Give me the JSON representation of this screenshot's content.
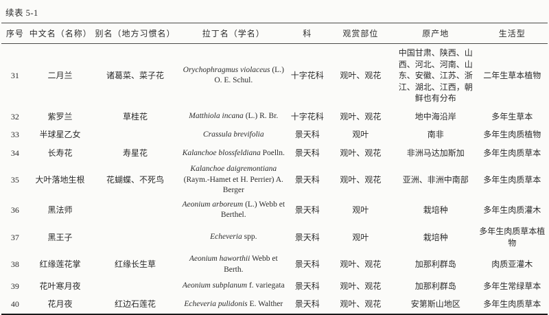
{
  "page": {
    "caption": "续表 5-1"
  },
  "table": {
    "headers": [
      "序号",
      "中文名（名称）",
      "别名（地方习惯名）",
      "拉丁名（学名）",
      "科",
      "观赏部位",
      "原产地",
      "生活型"
    ],
    "rows": [
      {
        "no": "31",
        "cn": "二月兰",
        "alias": "诸葛菜、菜子花",
        "latin": [
          [
            "i",
            "Orychophragmus violaceus"
          ],
          [
            "r",
            " (L.) O. E. Schul."
          ]
        ],
        "family": "十字花科",
        "view": "观叶、观花",
        "origin": "中国甘肃、陕西、山西、河北、河南、山东、安徽、江苏、浙江、湖北、江西，朝鲜也有分布",
        "life": "二年生草本植物"
      },
      {
        "no": "32",
        "cn": "紫罗兰",
        "alias": "草桂花",
        "latin": [
          [
            "i",
            "Matthiola incana"
          ],
          [
            "r",
            " (L.) R. Br."
          ]
        ],
        "family": "十字花科",
        "view": "观叶、观花",
        "origin": "地中海沿岸",
        "life": "多年生草本"
      },
      {
        "no": "33",
        "cn": "半球星乙女",
        "alias": "",
        "latin": [
          [
            "i",
            "Crassula brevifolia"
          ]
        ],
        "family": "景天科",
        "view": "观叶",
        "origin": "南非",
        "life": "多年生肉质植物"
      },
      {
        "no": "34",
        "cn": "长寿花",
        "alias": "寿星花",
        "latin": [
          [
            "i",
            "Kalanchoe blossfeldiana"
          ],
          [
            "r",
            " Poelln."
          ]
        ],
        "family": "景天科",
        "view": "观叶、观花",
        "origin": "非洲马达加斯加",
        "life": "多年生肉质草本"
      },
      {
        "no": "35",
        "cn": "大叶落地生根",
        "alias": "花蝴蝶、不死鸟",
        "latin": [
          [
            "i",
            "Kalanchoe daigremontiana"
          ],
          [
            "r",
            " (Raym.-Hamet et H. Perrier) A. Berger"
          ]
        ],
        "family": "景天科",
        "view": "观叶、观花",
        "origin": "亚洲、非洲中南部",
        "life": "多年生肉质草本"
      },
      {
        "no": "36",
        "cn": "黑法师",
        "alias": "",
        "latin": [
          [
            "i",
            "Aeonium arboreum"
          ],
          [
            "r",
            " (L.) Webb et Berthel."
          ]
        ],
        "family": "景天科",
        "view": "观叶",
        "origin": "栽培种",
        "life": "多年生肉质灌木"
      },
      {
        "no": "37",
        "cn": "黑王子",
        "alias": "",
        "latin": [
          [
            "i",
            "Echeveria"
          ],
          [
            "r",
            " spp."
          ]
        ],
        "family": "景天科",
        "view": "观叶",
        "origin": "栽培种",
        "life": "多年生肉质草本植物"
      },
      {
        "no": "38",
        "cn": "红缘莲花掌",
        "alias": "红缘长生草",
        "latin": [
          [
            "i",
            "Aeonium haworthii"
          ],
          [
            "r",
            " Webb et Berth."
          ]
        ],
        "family": "景天科",
        "view": "观叶、观花",
        "origin": "加那利群岛",
        "life": "肉质亚灌木"
      },
      {
        "no": "39",
        "cn": "花叶寒月夜",
        "alias": "",
        "latin": [
          [
            "i",
            "Aeonium subplanum"
          ],
          [
            "r",
            " f. variegata"
          ]
        ],
        "family": "景天科",
        "view": "观叶、观花",
        "origin": "加那利群岛",
        "life": "多年生常绿草本"
      },
      {
        "no": "40",
        "cn": "花月夜",
        "alias": "红边石莲花",
        "latin": [
          [
            "i",
            "Echeveria pulidonis"
          ],
          [
            "r",
            " E. Walther"
          ]
        ],
        "family": "景天科",
        "view": "观叶、观花",
        "origin": "安第斯山地区",
        "life": "多年生肉质草本"
      }
    ]
  }
}
